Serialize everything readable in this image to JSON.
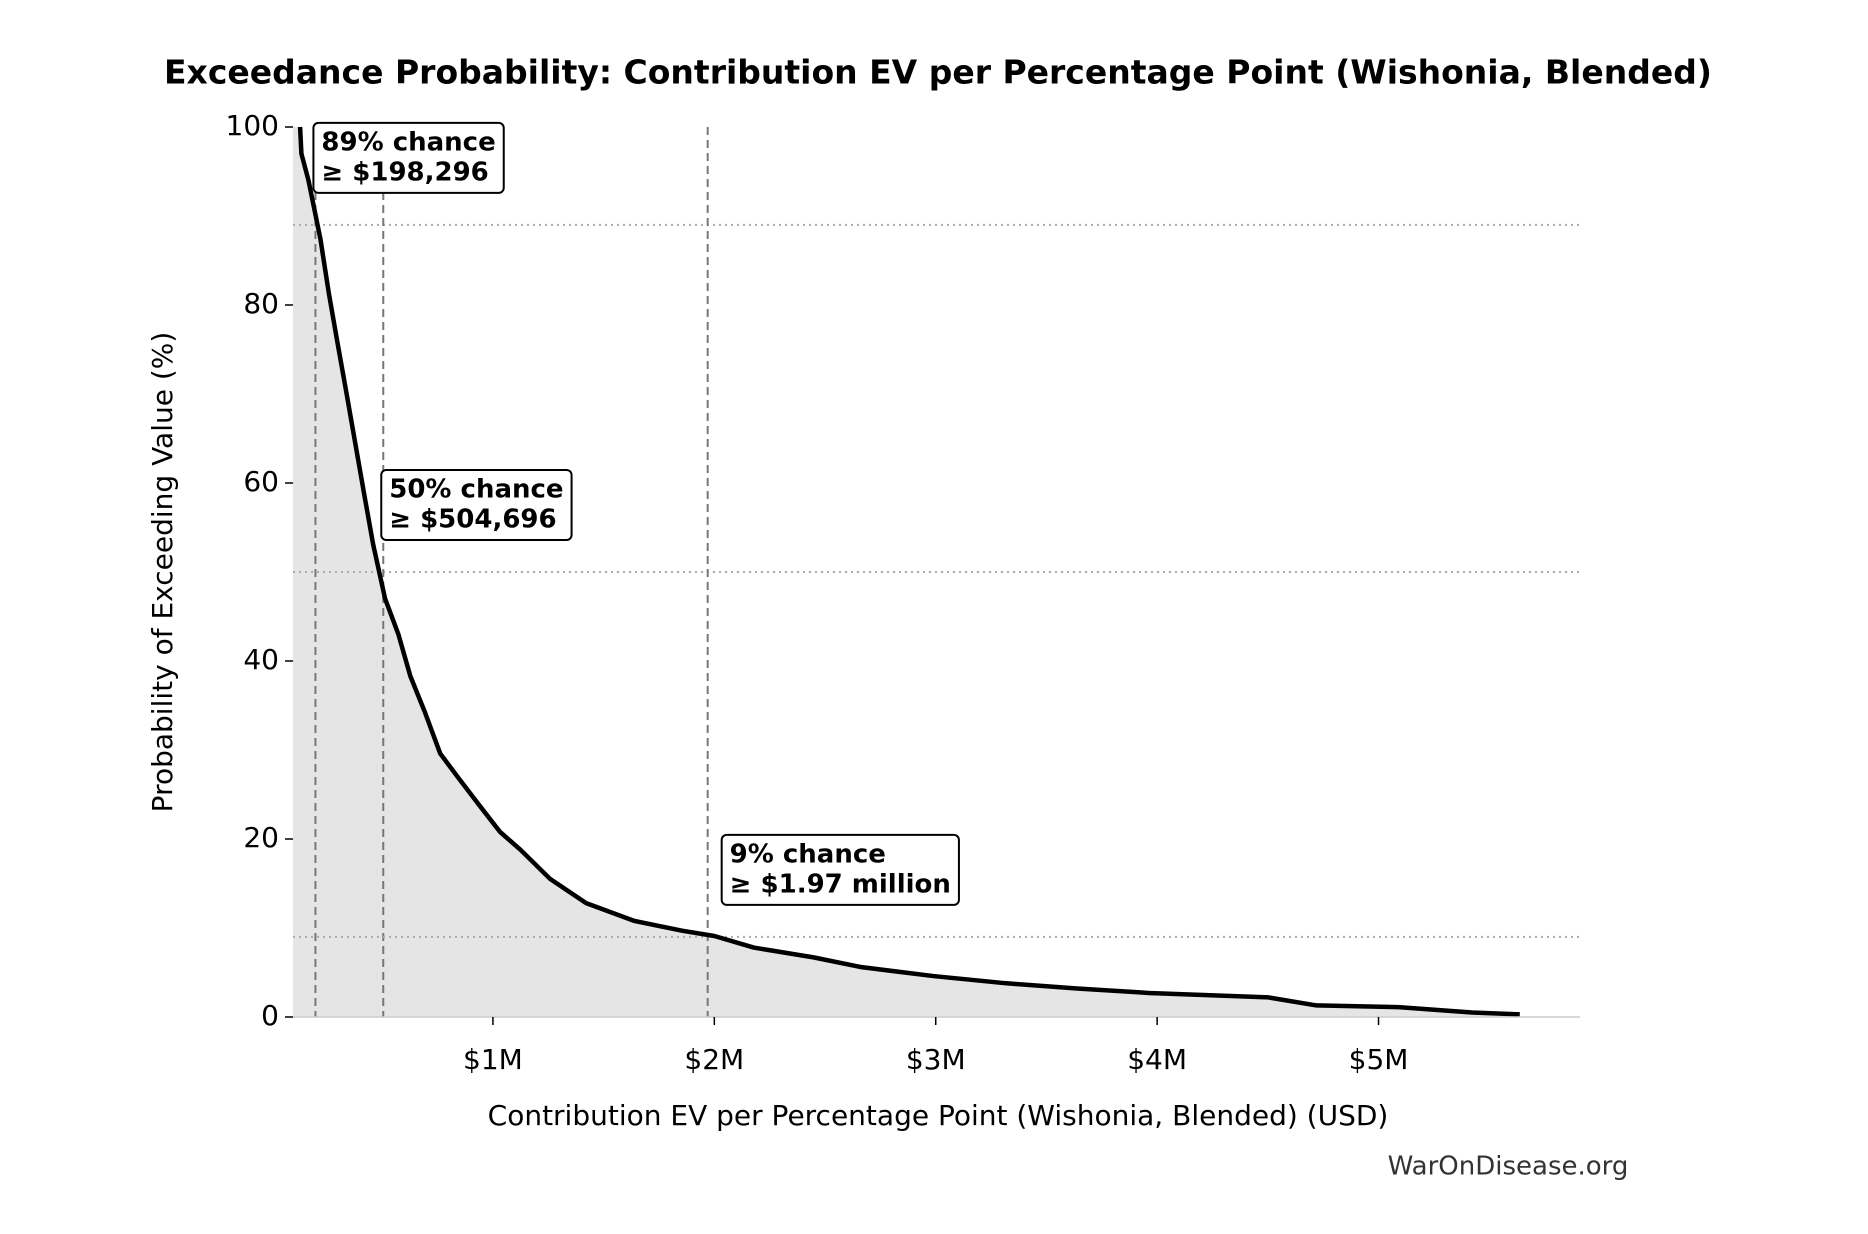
{
  "chart_data": {
    "type": "line",
    "title": "Exceedance Probability: Contribution EV per Percentage Point (Wishonia, Blended)",
    "xlabel": "Contribution EV per Percentage Point (Wishonia, Blended) (USD)",
    "ylabel": "Probability of Exceeding Value (%)",
    "source": "WarOnDisease.org",
    "x": [
      129000,
      135000,
      167000,
      194000,
      221000,
      259000,
      297000,
      340000,
      378000,
      416000,
      459000,
      513000,
      573000,
      627000,
      692000,
      762000,
      843000,
      935000,
      1032000,
      1124000,
      1259000,
      1421000,
      1638000,
      1854000,
      2000000,
      2178000,
      2448000,
      2665000,
      2989000,
      3313000,
      3638000,
      3962000,
      4503000,
      4719000,
      5097000,
      5422000,
      5638000
    ],
    "values": [
      100,
      97,
      94,
      90.7,
      87.4,
      81.3,
      75.9,
      69.9,
      64.5,
      59.1,
      53.1,
      47,
      43,
      38.3,
      34.3,
      29.6,
      26.9,
      23.9,
      20.8,
      18.8,
      15.5,
      12.8,
      10.8,
      9.7,
      9.1,
      7.8,
      6.7,
      5.6,
      4.6,
      3.8,
      3.2,
      2.7,
      2.2,
      1.3,
      1.1,
      0.5,
      0.3
    ],
    "color": "#000000",
    "fill_color": "#e5e5e5",
    "xlim": [
      97000,
      5910000
    ],
    "ylim": [
      0,
      100
    ],
    "xticks": [
      {
        "value": 1000000,
        "label": "$1M"
      },
      {
        "value": 2000000,
        "label": "$2M"
      },
      {
        "value": 3000000,
        "label": "$3M"
      },
      {
        "value": 4000000,
        "label": "$4M"
      },
      {
        "value": 5000000,
        "label": "$5M"
      }
    ],
    "yticks": [
      0,
      20,
      40,
      60,
      80,
      100
    ],
    "annotations": [
      {
        "x": 198296,
        "probability": 89,
        "lines": [
          "89% chance",
          "≥ $198,296"
        ]
      },
      {
        "x": 504696,
        "probability": 50,
        "lines": [
          "50% chance",
          "≥ $504,696"
        ]
      },
      {
        "x": 1970000,
        "probability": 9,
        "lines": [
          "9% chance",
          "≥ $1.97 million"
        ]
      }
    ]
  }
}
